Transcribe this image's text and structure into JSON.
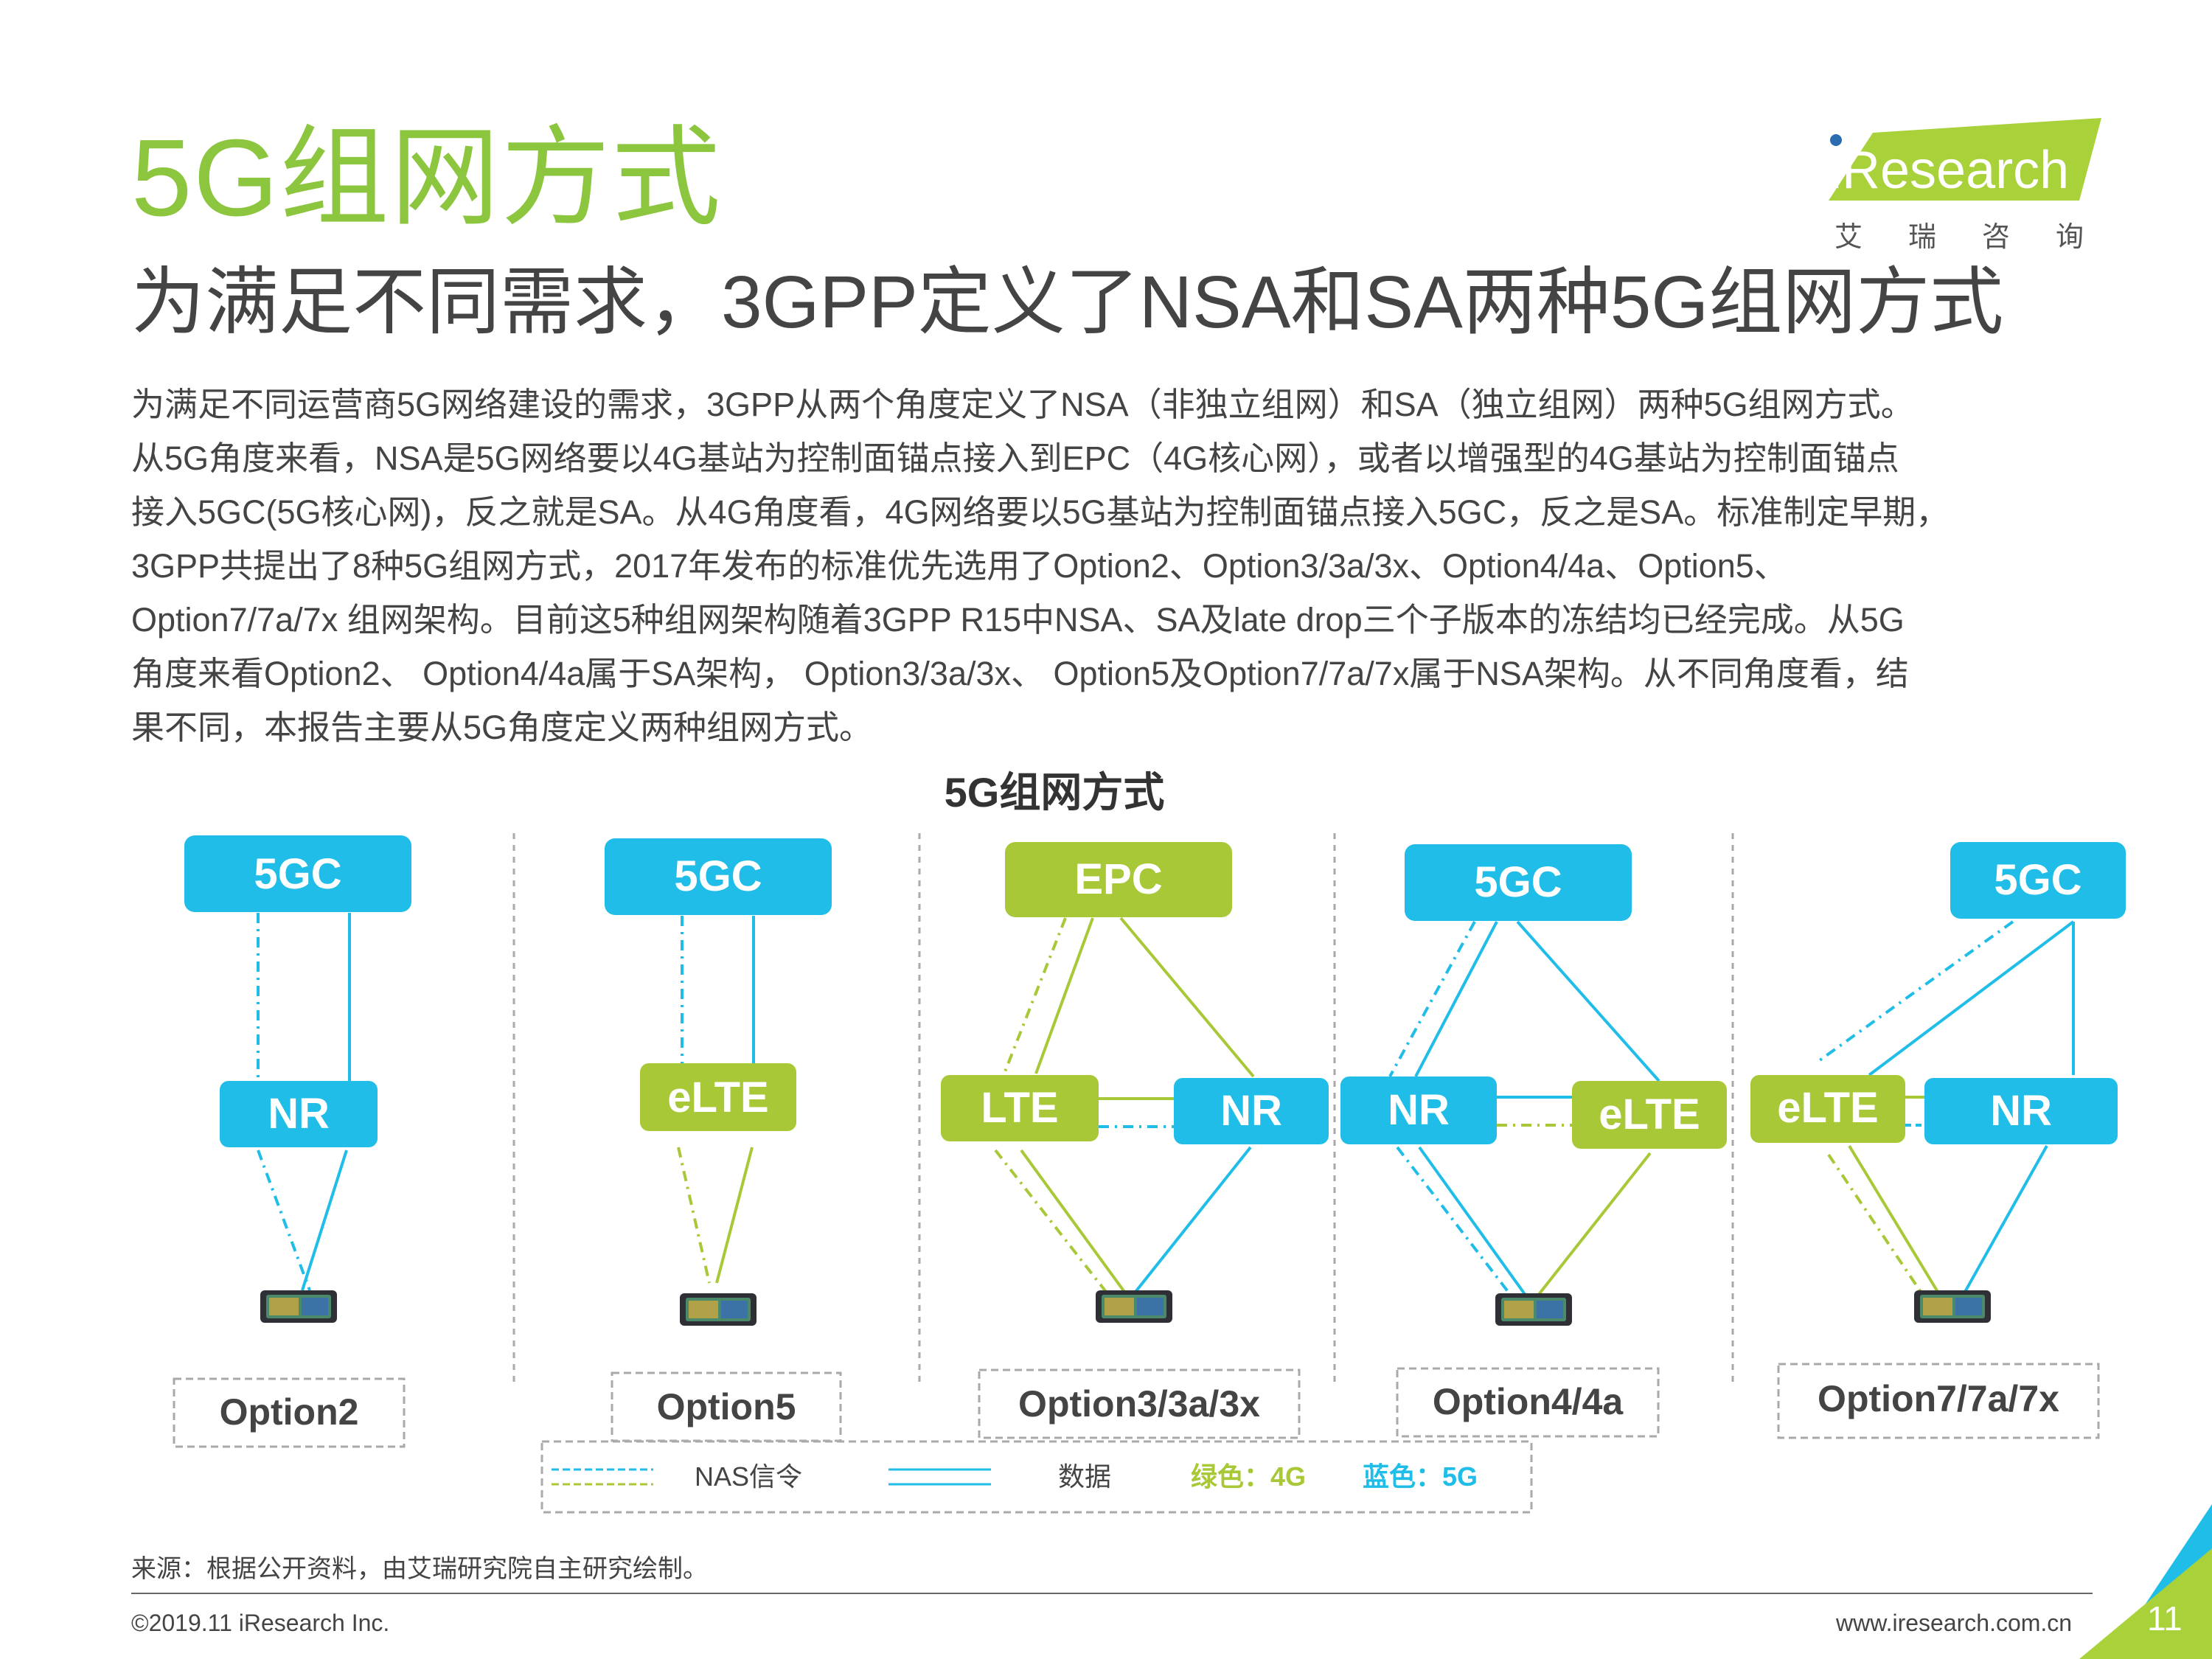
{
  "title": "5G组网方式",
  "subtitle": "为满足不同需求，3GPP定义了NSA和SA两种5G组网方式",
  "body_lines": [
    "为满足不同运营商5G网络建设的需求，3GPP从两个角度定义了NSA（非独立组网）和SA（独立组网）两种5G组网方式。",
    "从5G角度来看，NSA是5G网络要以4G基站为控制面锚点接入到EPC（4G核心网），或者以增强型的4G基站为控制面锚点",
    "接入5GC(5G核心网)，反之就是SA。从4G角度看，4G网络要以5G基站为控制面锚点接入5GC，反之是SA。标准制定早期，",
    "3GPP共提出了8种5G组网方式，2017年发布的标准优先选用了Option2、Option3/3a/3x、Option4/4a、Option5、",
    "Option7/7a/7x 组网架构。目前这5种组网架构随着3GPP R15中NSA、SA及late drop三个子版本的冻结均已经完成。从5G",
    "角度来看Option2、 Option4/4a属于SA架构， Option3/3a/3x、 Option5及Option7/7a/7x属于NSA架构。从不同角度看，结",
    "果不同，本报告主要从5G角度定义两种组网方式。"
  ],
  "diagram": {
    "title": "5G组网方式",
    "nodes": {
      "opt2_core": "5GC",
      "opt2_ran": "NR",
      "opt5_core": "5GC",
      "opt5_ran": "eLTE",
      "opt3_core": "EPC",
      "opt3_ran_a": "LTE",
      "opt3_ran_b": "NR",
      "opt4_core": "5GC",
      "opt4_ran_a": "NR",
      "opt4_ran_b": "eLTE",
      "opt7_core": "5GC",
      "opt7_ran_a": "eLTE",
      "opt7_ran_b": "NR"
    },
    "options": [
      "Option2",
      "Option5",
      "Option3/3a/3x",
      "Option4/4a",
      "Option7/7a/7x"
    ],
    "legend": {
      "signal_label": "NAS信令",
      "data_label": "数据",
      "green_label": "绿色：4G",
      "blue_label": "蓝色：5G"
    }
  },
  "colors": {
    "green": "#a8c838",
    "blue": "#1fbde8",
    "title_green": "#8cc63f"
  },
  "logo": {
    "text": "iResearch",
    "tagline": "艾瑞咨询"
  },
  "source": "来源：根据公开资料，由艾瑞研究院自主研究绘制。",
  "copyright": "©2019.11 iResearch Inc.",
  "website": "www.iresearch.com.cn",
  "page_number": "11"
}
